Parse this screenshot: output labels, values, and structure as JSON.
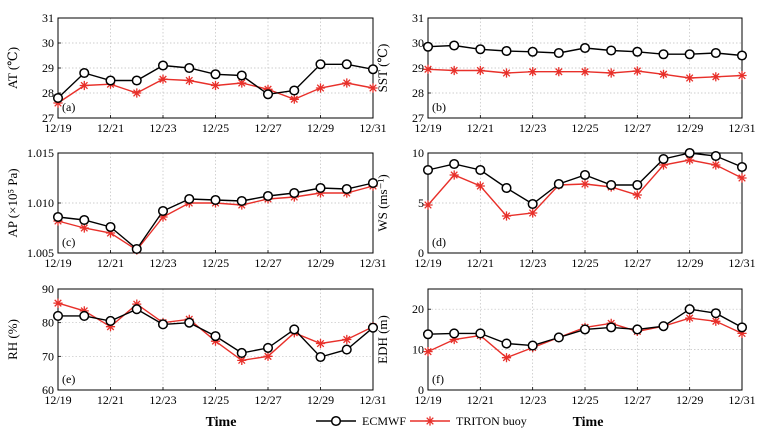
{
  "figure": {
    "x_axis_title": "Time",
    "legend": [
      {
        "name": "ECMWF",
        "color": "#000000",
        "marker": "circle"
      },
      {
        "name": "TRITON buoy",
        "color": "#e8302a",
        "marker": "star"
      }
    ]
  },
  "chart_data": [
    {
      "type": "line",
      "panel": "(a)",
      "ylabel": "AT (℃)",
      "xlabel": "",
      "ylim": [
        27,
        31
      ],
      "yticks": [
        "27",
        "28",
        "29",
        "30",
        "31"
      ],
      "categories": [
        "12/19",
        "12/20",
        "12/21",
        "12/22",
        "12/23",
        "12/24",
        "12/25",
        "12/26",
        "12/27",
        "12/28",
        "12/29",
        "12/30",
        "12/31"
      ],
      "xticklabels": [
        "12/19",
        "12/21",
        "12/23",
        "12/25",
        "12/27",
        "12/29",
        "12/31"
      ],
      "series": [
        {
          "name": "ECMWF",
          "values": [
            27.8,
            28.8,
            28.5,
            28.5,
            29.1,
            29.0,
            28.75,
            28.7,
            27.95,
            28.1,
            29.15,
            29.15,
            28.95
          ]
        },
        {
          "name": "TRITON buoy",
          "values": [
            27.6,
            28.3,
            28.35,
            28.0,
            28.55,
            28.5,
            28.3,
            28.4,
            28.15,
            27.75,
            28.2,
            28.4,
            28.2
          ]
        }
      ]
    },
    {
      "type": "line",
      "panel": "(b)",
      "ylabel": "SST (℃)",
      "xlabel": "",
      "ylim": [
        27,
        31
      ],
      "yticks": [
        "27",
        "28",
        "29",
        "30",
        "31"
      ],
      "categories": [
        "12/19",
        "12/20",
        "12/21",
        "12/22",
        "12/23",
        "12/24",
        "12/25",
        "12/26",
        "12/27",
        "12/28",
        "12/29",
        "12/30",
        "12/31"
      ],
      "xticklabels": [
        "12/19",
        "12/21",
        "12/23",
        "12/25",
        "12/27",
        "12/29",
        "12/31"
      ],
      "series": [
        {
          "name": "ECMWF",
          "values": [
            29.85,
            29.9,
            29.75,
            29.68,
            29.65,
            29.6,
            29.8,
            29.7,
            29.65,
            29.55,
            29.55,
            29.6,
            29.5
          ]
        },
        {
          "name": "TRITON buoy",
          "values": [
            28.95,
            28.9,
            28.9,
            28.8,
            28.85,
            28.85,
            28.85,
            28.8,
            28.88,
            28.75,
            28.6,
            28.65,
            28.7
          ]
        }
      ]
    },
    {
      "type": "line",
      "panel": "(c)",
      "ylabel": "AP (×10⁵ Pa)",
      "xlabel": "",
      "ylim": [
        1.005,
        1.015
      ],
      "yticks": [
        "1.005",
        "1.010",
        "1.015"
      ],
      "categories": [
        "12/19",
        "12/20",
        "12/21",
        "12/22",
        "12/23",
        "12/24",
        "12/25",
        "12/26",
        "12/27",
        "12/28",
        "12/29",
        "12/30",
        "12/31"
      ],
      "xticklabels": [
        "12/19",
        "12/21",
        "12/23",
        "12/25",
        "12/27",
        "12/29",
        "12/31"
      ],
      "series": [
        {
          "name": "ECMWF",
          "values": [
            1.0086,
            1.0083,
            1.0076,
            1.0054,
            1.0092,
            1.0104,
            1.0103,
            1.0102,
            1.0107,
            1.011,
            1.0115,
            1.0114,
            1.012
          ]
        },
        {
          "name": "TRITON buoy",
          "values": [
            1.0082,
            1.0075,
            1.007,
            1.0053,
            1.0086,
            1.01,
            1.01,
            1.0098,
            1.0104,
            1.0106,
            1.011,
            1.011,
            1.0117
          ]
        }
      ]
    },
    {
      "type": "line",
      "panel": "(d)",
      "ylabel": "WS (ms⁻¹)",
      "xlabel": "",
      "ylim": [
        0,
        10
      ],
      "yticks": [
        "0",
        "5",
        "10"
      ],
      "categories": [
        "12/19",
        "12/20",
        "12/21",
        "12/22",
        "12/23",
        "12/24",
        "12/25",
        "12/26",
        "12/27",
        "12/28",
        "12/29",
        "12/30",
        "12/31"
      ],
      "xticklabels": [
        "12/19",
        "12/21",
        "12/23",
        "12/25",
        "12/27",
        "12/29",
        "12/31"
      ],
      "series": [
        {
          "name": "ECMWF",
          "values": [
            8.3,
            8.9,
            8.3,
            6.5,
            4.9,
            6.9,
            7.8,
            6.8,
            6.8,
            9.4,
            10.0,
            9.7,
            8.6
          ]
        },
        {
          "name": "TRITON buoy",
          "values": [
            4.8,
            7.8,
            6.7,
            3.7,
            4.0,
            6.8,
            6.9,
            6.6,
            5.8,
            8.8,
            9.3,
            8.8,
            7.5
          ]
        }
      ]
    },
    {
      "type": "line",
      "panel": "(e)",
      "ylabel": "RH (%)",
      "xlabel": "",
      "ylim": [
        60,
        90
      ],
      "yticks": [
        "60",
        "70",
        "80",
        "90"
      ],
      "categories": [
        "12/19",
        "12/20",
        "12/21",
        "12/22",
        "12/23",
        "12/24",
        "12/25",
        "12/26",
        "12/27",
        "12/28",
        "12/29",
        "12/30",
        "12/31"
      ],
      "xticklabels": [
        "12/19",
        "12/21",
        "12/23",
        "12/25",
        "12/27",
        "12/29",
        "12/31"
      ],
      "series": [
        {
          "name": "ECMWF",
          "values": [
            82.0,
            82.0,
            80.5,
            84.0,
            79.5,
            80.0,
            76.0,
            71.0,
            72.5,
            78.0,
            69.8,
            72.0,
            78.5
          ]
        },
        {
          "name": "TRITON buoy",
          "values": [
            85.8,
            83.5,
            78.8,
            85.5,
            80.0,
            81.0,
            74.5,
            68.8,
            70.0,
            77.0,
            73.8,
            75.0,
            78.8
          ]
        }
      ]
    },
    {
      "type": "line",
      "panel": "(f)",
      "ylabel": "EDH (m)",
      "xlabel": "",
      "ylim": [
        0,
        25
      ],
      "yticks": [
        "0",
        "10",
        "20"
      ],
      "categories": [
        "12/19",
        "12/20",
        "12/21",
        "12/22",
        "12/23",
        "12/24",
        "12/25",
        "12/26",
        "12/27",
        "12/28",
        "12/29",
        "12/30",
        "12/31"
      ],
      "xticklabels": [
        "12/19",
        "12/21",
        "12/23",
        "12/25",
        "12/27",
        "12/29",
        "12/31"
      ],
      "series": [
        {
          "name": "ECMWF",
          "values": [
            13.8,
            14.0,
            14.0,
            11.5,
            11.0,
            13.0,
            15.0,
            15.5,
            15.0,
            15.8,
            20.0,
            19.0,
            15.5
          ]
        },
        {
          "name": "TRITON buoy",
          "values": [
            9.5,
            12.5,
            13.5,
            8.0,
            10.5,
            13.0,
            15.5,
            16.5,
            14.5,
            15.8,
            17.8,
            17.0,
            14.0
          ]
        }
      ]
    }
  ]
}
